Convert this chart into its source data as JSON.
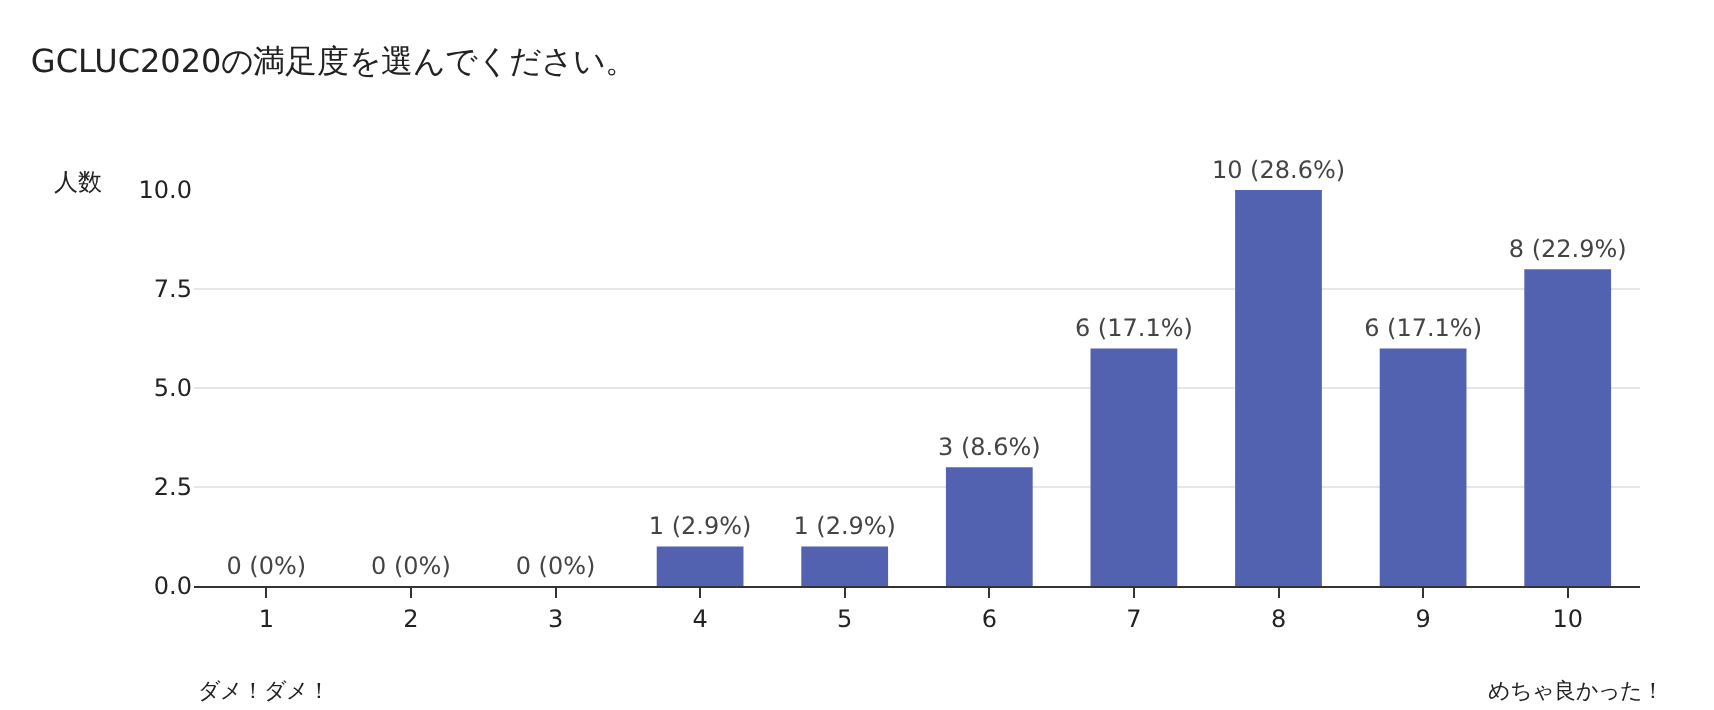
{
  "chart_data": {
    "type": "bar",
    "title": "GCLUC2020の満足度を選んでください。",
    "ylabel": "人数",
    "categories": [
      "1",
      "2",
      "3",
      "4",
      "5",
      "6",
      "7",
      "8",
      "9",
      "10"
    ],
    "values": [
      0,
      0,
      0,
      1,
      1,
      3,
      6,
      10,
      6,
      8
    ],
    "value_labels": [
      "0 (0%)",
      "0 (0%)",
      "0 (0%)",
      "1 (2.9%)",
      "1 (2.9%)",
      "3 (8.6%)",
      "6 (17.1%)",
      "10 (28.6%)",
      "6 (17.1%)",
      "8 (22.9%)"
    ],
    "color": "#5261b0",
    "ylim": [
      0,
      10
    ],
    "yticks": [
      {
        "value": 0,
        "label": "0.0"
      },
      {
        "value": 2.5,
        "label": "2.5"
      },
      {
        "value": 5,
        "label": "5.0"
      },
      {
        "value": 7.5,
        "label": "7.5"
      },
      {
        "value": 10,
        "label": "10.0"
      }
    ],
    "grid": "y",
    "annotations": [
      "ダメ！ダメ！",
      "めちゃ良かった！"
    ]
  }
}
